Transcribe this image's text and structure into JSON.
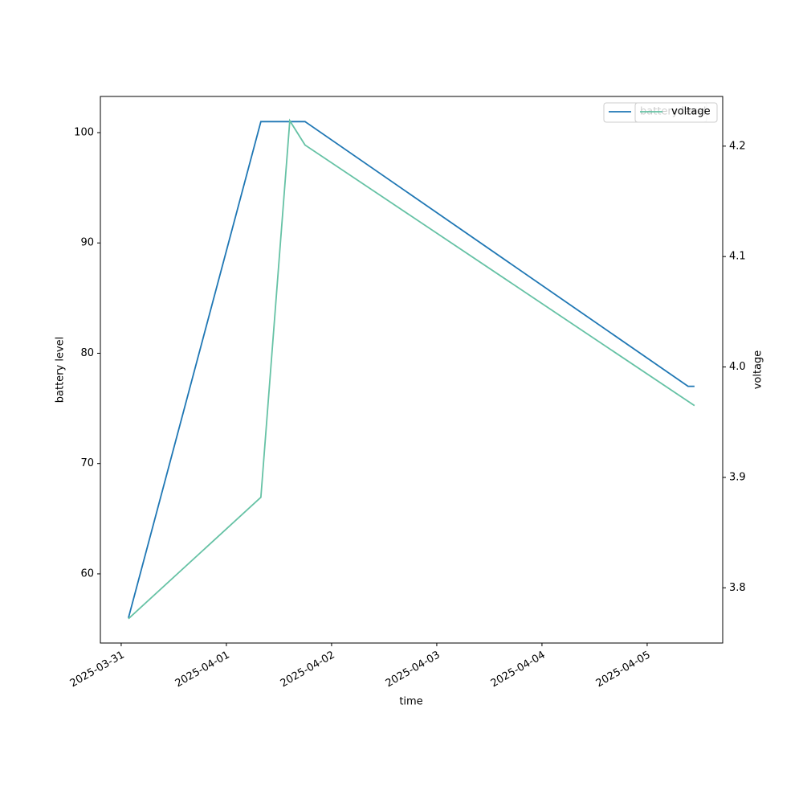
{
  "chart_data": {
    "type": "line",
    "x_label": "time",
    "y_label": "battery level",
    "y2_label": "voltage",
    "series": [
      {
        "name": "battery level",
        "color": "#1f77b4",
        "axis": "y",
        "x": [
          "2025-03-31T01:39",
          "2025-04-01T07:52",
          "2025-04-01T17:57",
          "2025-04-05T09:20",
          "2025-04-05T10:48"
        ],
        "values": [
          56,
          101,
          101,
          77,
          77
        ]
      },
      {
        "name": "voltage",
        "color": "#66c2a5",
        "axis": "y2",
        "x": [
          "2025-03-31T01:39",
          "2025-04-01T07:52",
          "2025-04-01T14:28",
          "2025-04-01T17:57",
          "2025-04-05T10:48"
        ],
        "values": [
          3.772,
          3.882,
          4.223,
          4.201,
          3.965
        ]
      }
    ],
    "xlim": [
      "2025-03-30T19:15",
      "2025-04-05T17:14"
    ],
    "xticks": [
      "2025-03-31",
      "2025-04-01",
      "2025-04-02",
      "2025-04-03",
      "2025-04-04",
      "2025-04-05"
    ],
    "ylim": [
      53.73,
      103.28
    ],
    "yticks": [
      60,
      70,
      80,
      90,
      100
    ],
    "y2lim": [
      3.75,
      4.245
    ],
    "y2ticks": [
      3.8,
      3.9,
      {
        "value": 4,
        "label": "4.0"
      },
      4.1,
      4.2
    ],
    "grid": false,
    "legend": "upper right"
  }
}
